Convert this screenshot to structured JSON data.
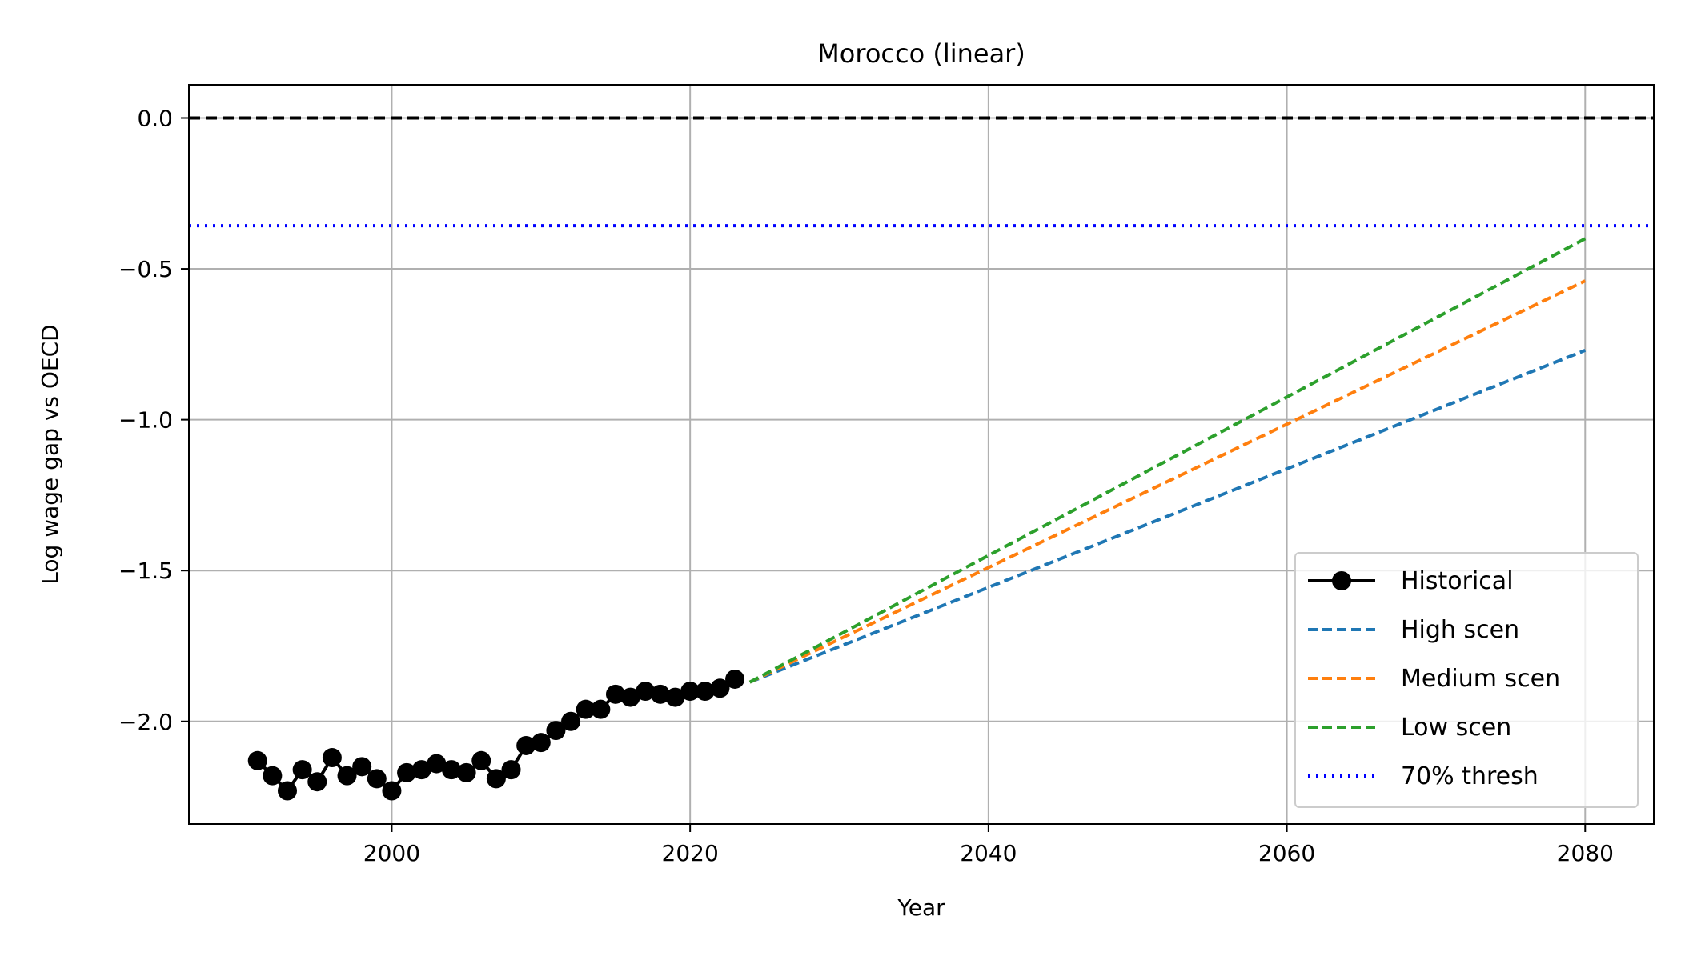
{
  "chart_data": {
    "type": "line",
    "title": "Morocco (linear)",
    "xlabel": "Year",
    "ylabel": "Log wage gap vs OECD",
    "xlim": [
      1986.4,
      2084.6
    ],
    "ylim": [
      -2.34,
      0.11
    ],
    "x_ticks": [
      2000,
      2020,
      2040,
      2060,
      2080
    ],
    "y_ticks": [
      0.0,
      -0.5,
      -1.0,
      -1.5,
      -2.0
    ],
    "y_tick_labels": [
      "0.0",
      "−0.5",
      "−1.0",
      "−1.5",
      "−2.0"
    ],
    "grid": true,
    "legend_position": "lower-right",
    "series": [
      {
        "name": "Historical",
        "color": "#000000",
        "style": "solid-marker",
        "x": [
          1991,
          1992,
          1993,
          1994,
          1995,
          1996,
          1997,
          1998,
          1999,
          2000,
          2001,
          2002,
          2003,
          2004,
          2005,
          2006,
          2007,
          2008,
          2009,
          2010,
          2011,
          2012,
          2013,
          2014,
          2015,
          2016,
          2017,
          2018,
          2019,
          2020,
          2021,
          2022,
          2023
        ],
        "y": [
          -2.13,
          -2.18,
          -2.23,
          -2.16,
          -2.2,
          -2.12,
          -2.18,
          -2.15,
          -2.19,
          -2.23,
          -2.17,
          -2.16,
          -2.14,
          -2.16,
          -2.17,
          -2.13,
          -2.19,
          -2.16,
          -2.08,
          -2.07,
          -2.03,
          -2.0,
          -1.96,
          -1.96,
          -1.91,
          -1.92,
          -1.9,
          -1.91,
          -1.92,
          -1.9,
          -1.9,
          -1.89,
          -1.86
        ]
      },
      {
        "name": "High scen",
        "color": "#1f77b4",
        "style": "dashed",
        "x": [
          2024,
          2080
        ],
        "y": [
          -1.87,
          -0.77
        ]
      },
      {
        "name": "Medium scen",
        "color": "#ff7f0e",
        "style": "dashed",
        "x": [
          2024,
          2080
        ],
        "y": [
          -1.87,
          -0.54
        ]
      },
      {
        "name": "Low scen",
        "color": "#2ca02c",
        "style": "dashed",
        "x": [
          2024,
          2080
        ],
        "y": [
          -1.87,
          -0.4
        ]
      },
      {
        "name": "70% thresh",
        "color": "#0000ff",
        "style": "dotted",
        "hline": -0.357
      }
    ],
    "reference_line": {
      "y": 0.0,
      "color": "#000000",
      "style": "dashed"
    }
  }
}
